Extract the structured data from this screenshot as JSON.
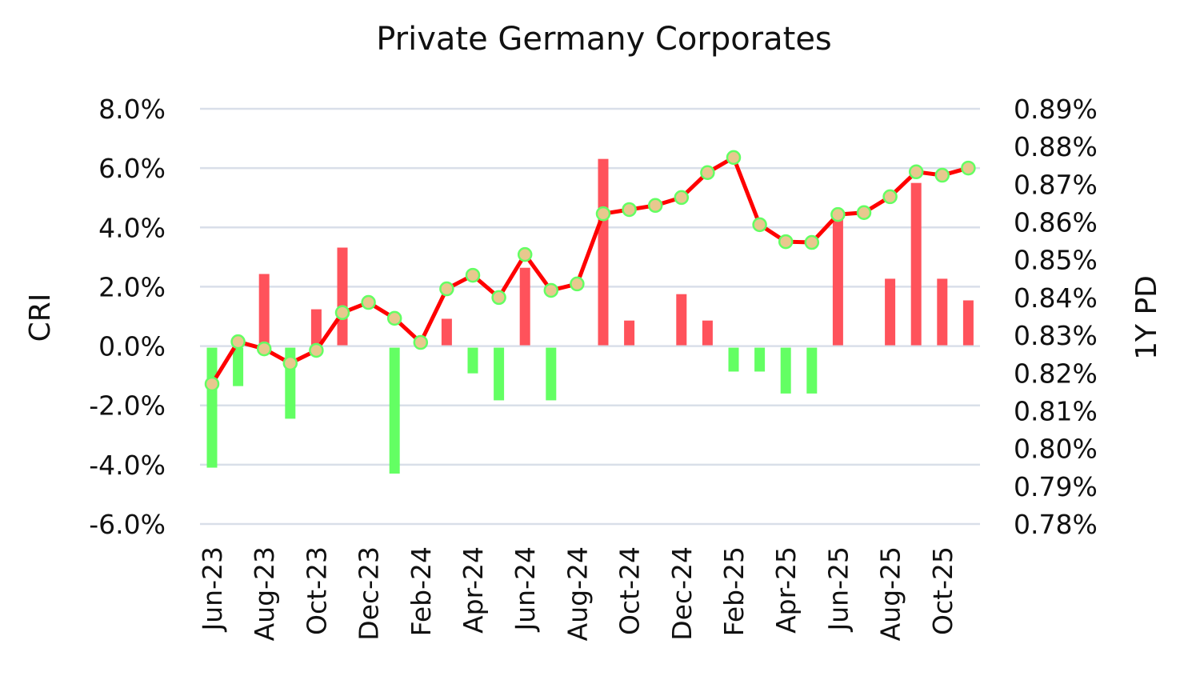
{
  "chart_data": {
    "type": "bar+line",
    "title": "Private Germany Corporates",
    "y_left_label": "CRI",
    "y_right_label": "1Y PD",
    "y_left_ticks": [
      "8.0%",
      "6.0%",
      "4.0%",
      "2.0%",
      "0.0%",
      "-2.0%",
      "-4.0%",
      "-6.0%"
    ],
    "y_left_range": [
      -6.0,
      8.0
    ],
    "y_right_ticks": [
      "0.89%",
      "0.88%",
      "0.87%",
      "0.86%",
      "0.85%",
      "0.84%",
      "0.83%",
      "0.82%",
      "0.81%",
      "0.80%",
      "0.79%",
      "0.78%"
    ],
    "y_right_range": [
      0.78,
      0.89
    ],
    "grid": true,
    "categories": [
      "Jun-23",
      "Jul-23",
      "Aug-23",
      "Sep-23",
      "Oct-23",
      "Nov-23",
      "Dec-23",
      "Jan-24",
      "Feb-24",
      "Mar-24",
      "Apr-24",
      "May-24",
      "Jun-24",
      "Jul-24",
      "Aug-24",
      "Sep-24",
      "Oct-24",
      "Nov-24",
      "Dec-24",
      "Jan-25",
      "Feb-25",
      "Mar-25",
      "Apr-25",
      "May-25",
      "Jun-25",
      "Jul-25",
      "Aug-25",
      "Sep-25",
      "Oct-25",
      "Nov-25"
    ],
    "x_tick_labels": [
      "Jun-23",
      "Aug-23",
      "Oct-23",
      "Dec-23",
      "Feb-24",
      "Apr-24",
      "Jun-24",
      "Aug-24",
      "Oct-24",
      "Dec-24",
      "Feb-25",
      "Apr-25",
      "Jun-25",
      "Aug-25",
      "Oct-25"
    ],
    "series": [
      {
        "axis": "left",
        "type": "bar",
        "values": [
          -4.1,
          -1.35,
          2.43,
          -2.45,
          1.24,
          3.32,
          0,
          -4.3,
          0,
          0.92,
          -0.92,
          -1.83,
          2.64,
          -1.83,
          0,
          6.31,
          0.86,
          0,
          1.75,
          0.86,
          -0.86,
          -0.86,
          -1.6,
          -1.6,
          4.6,
          0,
          2.27,
          5.5,
          2.27,
          1.54
        ]
      },
      {
        "axis": "right",
        "type": "line",
        "values": [
          0.8171,
          0.8283,
          0.8264,
          0.8226,
          0.826,
          0.836,
          0.8387,
          0.8345,
          0.8281,
          0.8423,
          0.8459,
          0.84,
          0.8514,
          0.8419,
          0.8436,
          0.8622,
          0.8633,
          0.8644,
          0.8665,
          0.8731,
          0.8771,
          0.8593,
          0.8548,
          0.8546,
          0.862,
          0.8625,
          0.8667,
          0.8733,
          0.8724,
          0.8743
        ]
      }
    ],
    "colors": {
      "positive_bar": "#ff525b",
      "negative_bar": "#63ff63",
      "line": "#ff0000",
      "marker_fill": "#e8c88e",
      "marker_edge": "#63ff63",
      "grid": "#d9dfe9"
    }
  }
}
